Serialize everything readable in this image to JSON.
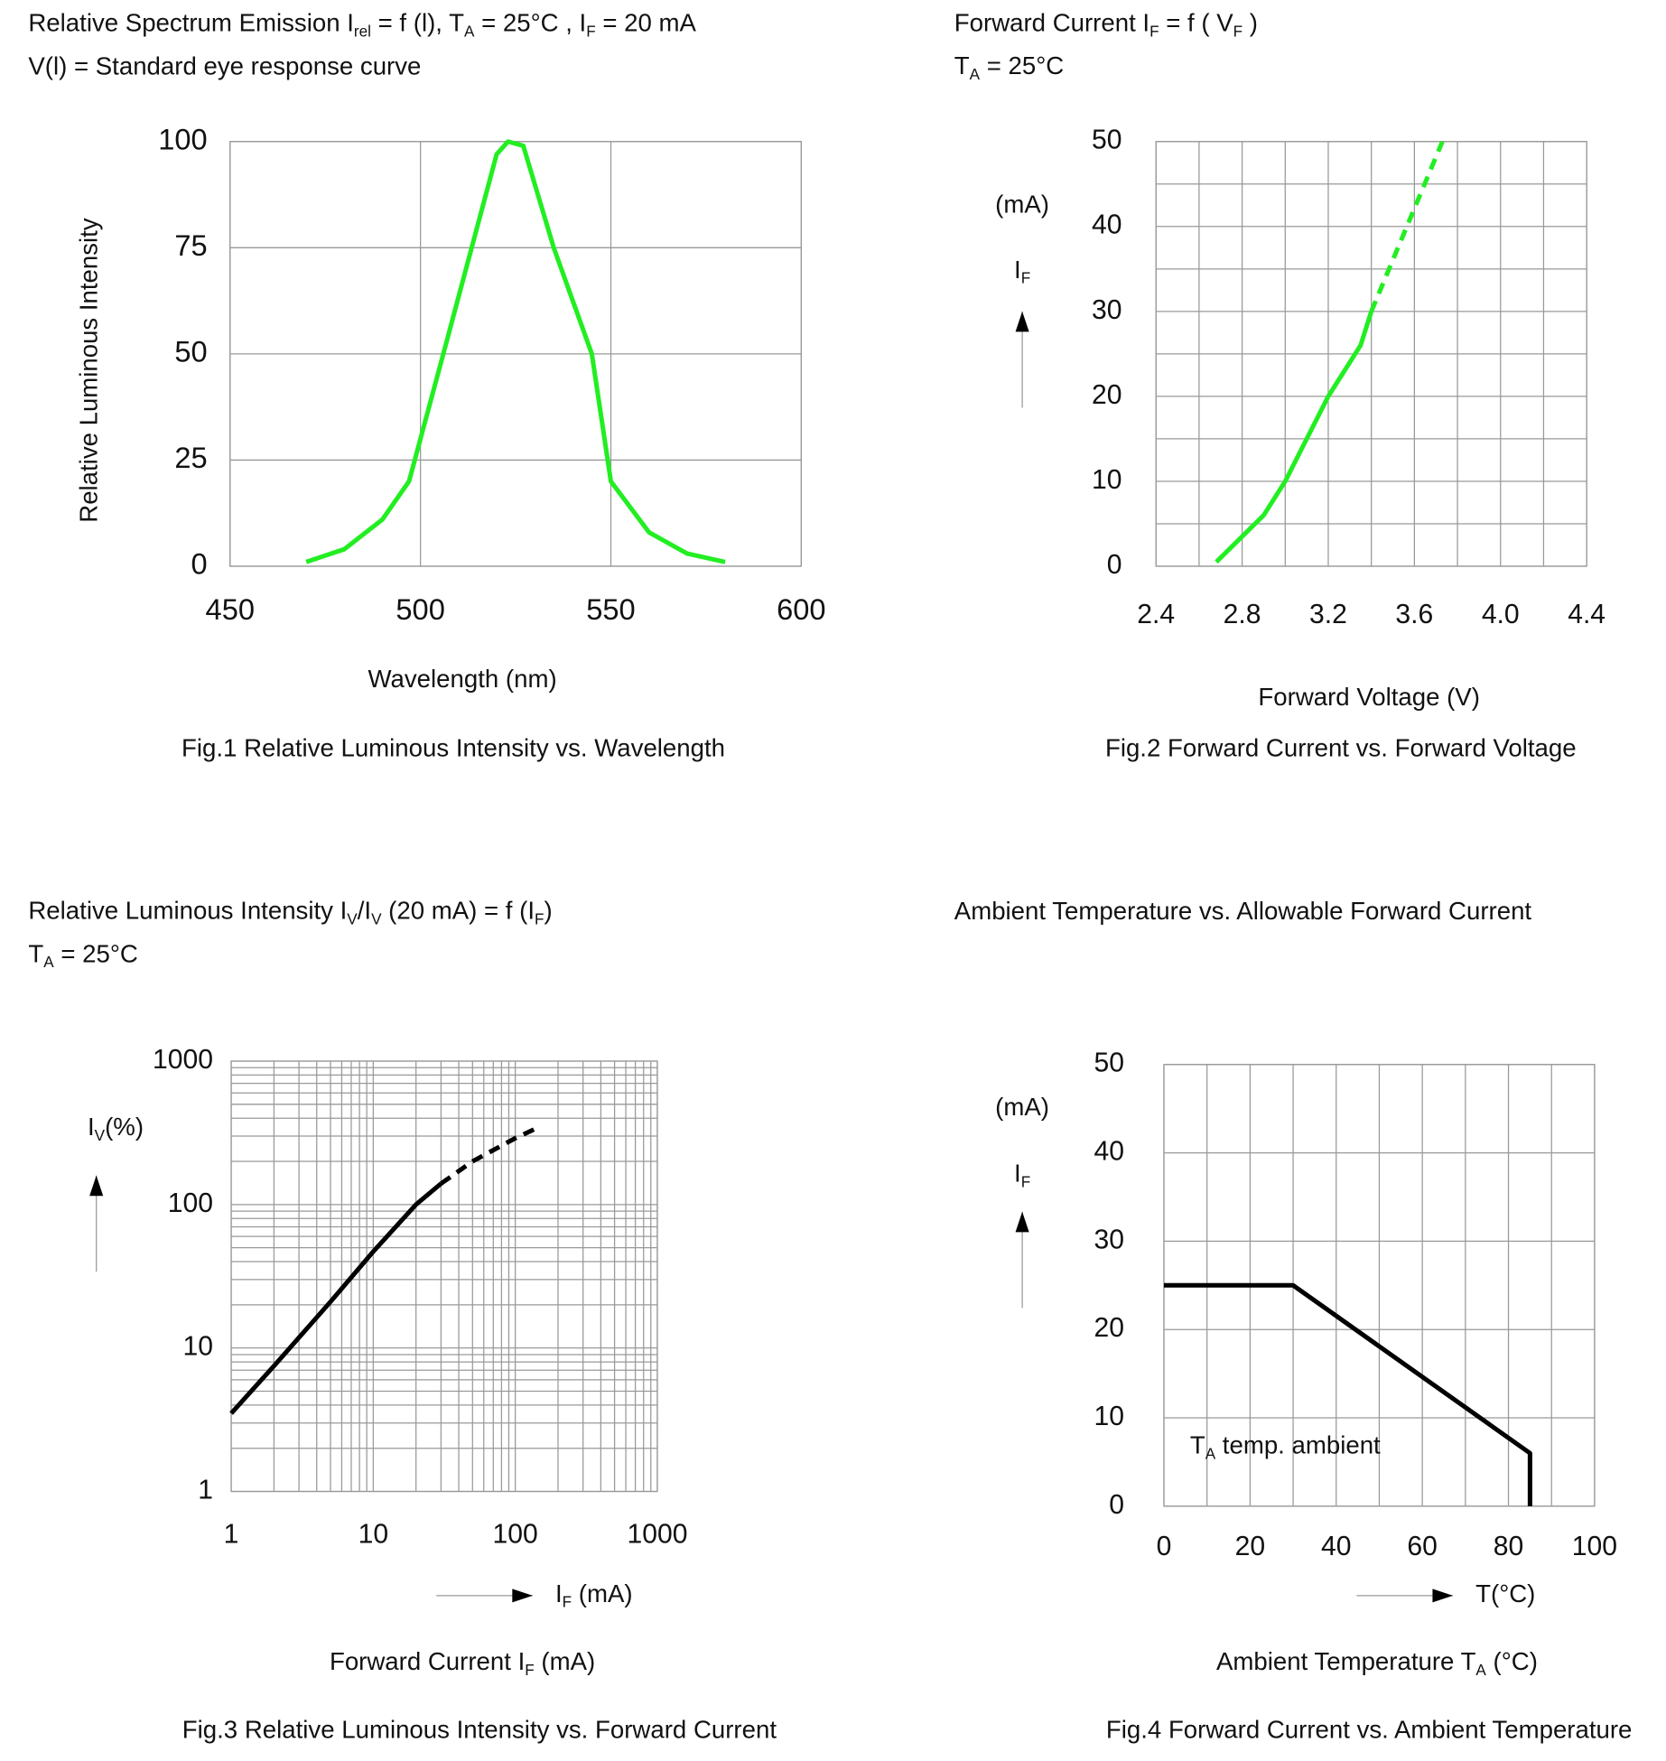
{
  "chart_data": [
    {
      "type": "line",
      "title": [
        "Relative Spectrum Emission I",
        "rel",
        " = f (l), T",
        "A",
        " = 25°C , I",
        "F",
        " = 20 mA"
      ],
      "subtitle": "V(l) = Standard eye response curve",
      "ylabel": "Relative Luminous Intensity",
      "xlabel": "Wavelength (nm)",
      "caption": "Fig.1 Relative Luminous Intensity vs. Wavelength",
      "xlim": [
        450,
        600
      ],
      "ylim": [
        0,
        100
      ],
      "xticks": [
        450,
        500,
        550,
        600
      ],
      "yticks": [
        0,
        25,
        50,
        75,
        100
      ],
      "grid": true,
      "log": false,
      "series": [
        {
          "color": "#22ee22",
          "dashed": false,
          "x": [
            470,
            480,
            490,
            497,
            500,
            506,
            520,
            523,
            527,
            535,
            545,
            550,
            560,
            570,
            580
          ],
          "values": [
            1,
            4,
            11,
            20,
            30,
            50,
            97,
            100,
            99,
            75,
            50,
            20,
            8,
            3,
            1
          ]
        }
      ]
    },
    {
      "type": "line",
      "title": [
        "Forward Current I",
        "F",
        " = f ( V",
        "F",
        " )"
      ],
      "subtitle": [
        "T",
        "A",
        " = 25°C"
      ],
      "y_unit": "(mA)",
      "ylabel": [
        "I",
        "F"
      ],
      "xlabel": "Forward Voltage (V)",
      "caption": "Fig.2 Forward Current vs. Forward Voltage",
      "xlim": [
        2.4,
        4.4
      ],
      "ylim": [
        0,
        50
      ],
      "xticks": [
        2.4,
        2.8,
        3.2,
        3.6,
        4.0,
        4.4
      ],
      "yticks": [
        0,
        10,
        20,
        30,
        40,
        50
      ],
      "xgrid": [
        2.4,
        2.6,
        2.8,
        3.0,
        3.2,
        3.4,
        3.6,
        3.8,
        4.0,
        4.2,
        4.4
      ],
      "ygrid": [
        0,
        5,
        10,
        15,
        20,
        25,
        30,
        35,
        40,
        45,
        50
      ],
      "grid": true,
      "log": false,
      "series": [
        {
          "color": "#22ee22",
          "dashed": false,
          "x": [
            2.68,
            2.9,
            3.0,
            3.2,
            3.35,
            3.4
          ],
          "values": [
            0.5,
            6,
            10,
            20,
            26,
            30
          ]
        },
        {
          "color": "#22ee22",
          "dashed": true,
          "x": [
            3.4,
            3.73
          ],
          "values": [
            30,
            50
          ]
        }
      ]
    },
    {
      "type": "line",
      "title": [
        "Relative Luminous Intensity I",
        "V",
        "/I",
        "V",
        " (20 mA) = f (I",
        "F",
        ")"
      ],
      "subtitle": [
        "T",
        "A",
        " = 25°C"
      ],
      "ylabel": [
        "I",
        "V",
        "(%)"
      ],
      "xlabel": [
        "I",
        "F",
        " (mA)"
      ],
      "x_title": [
        "Forward Current I",
        "F",
        " (mA)"
      ],
      "caption": "Fig.3 Relative Luminous Intensity vs. Forward Current",
      "xlim": [
        1,
        1000
      ],
      "ylim": [
        1,
        1000
      ],
      "xticks": [
        1,
        10,
        100,
        1000
      ],
      "yticks": [
        1,
        10,
        100,
        1000
      ],
      "xgrid": [
        1,
        2,
        3,
        4,
        5,
        6,
        7,
        8,
        9,
        10,
        20,
        30,
        40,
        50,
        60,
        70,
        80,
        90,
        100,
        200,
        300,
        400,
        500,
        600,
        700,
        800,
        900,
        1000
      ],
      "ygrid": [
        1,
        2,
        3,
        4,
        5,
        6,
        7,
        8,
        9,
        10,
        20,
        30,
        40,
        50,
        60,
        70,
        80,
        90,
        100,
        200,
        300,
        400,
        500,
        600,
        700,
        800,
        900,
        1000
      ],
      "grid": true,
      "log": true,
      "series": [
        {
          "color": "#000000",
          "dashed": false,
          "x": [
            1,
            2,
            5,
            10,
            20,
            30
          ],
          "values": [
            3.5,
            7.5,
            21,
            47,
            100,
            140
          ]
        },
        {
          "color": "#000000",
          "dashed": true,
          "x": [
            30,
            50,
            100,
            150
          ],
          "values": [
            140,
            200,
            290,
            350
          ]
        }
      ]
    },
    {
      "type": "line",
      "title": "Ambient Temperature vs. Allowable Forward Current",
      "y_unit": "(mA)",
      "ylabel": [
        "I",
        "F"
      ],
      "xlabel": "T(°C)",
      "x_title": [
        "Ambient Temperature T",
        "A",
        " (°C)"
      ],
      "annotation": [
        "T",
        "A",
        " temp. ambient"
      ],
      "caption": "Fig.4 Forward Current vs. Ambient Temperature",
      "xlim": [
        0,
        100
      ],
      "ylim": [
        0,
        50
      ],
      "xticks": [
        0,
        20,
        40,
        60,
        80,
        100
      ],
      "yticks": [
        0,
        10,
        20,
        30,
        40,
        50
      ],
      "xgrid": [
        0,
        10,
        20,
        30,
        40,
        50,
        60,
        70,
        80,
        90,
        100
      ],
      "ygrid": [
        0,
        10,
        20,
        30,
        40,
        50
      ],
      "grid": true,
      "log": false,
      "series": [
        {
          "color": "#000000",
          "dashed": false,
          "x": [
            0,
            30,
            85,
            85
          ],
          "values": [
            25,
            25,
            6,
            0
          ]
        }
      ]
    }
  ]
}
